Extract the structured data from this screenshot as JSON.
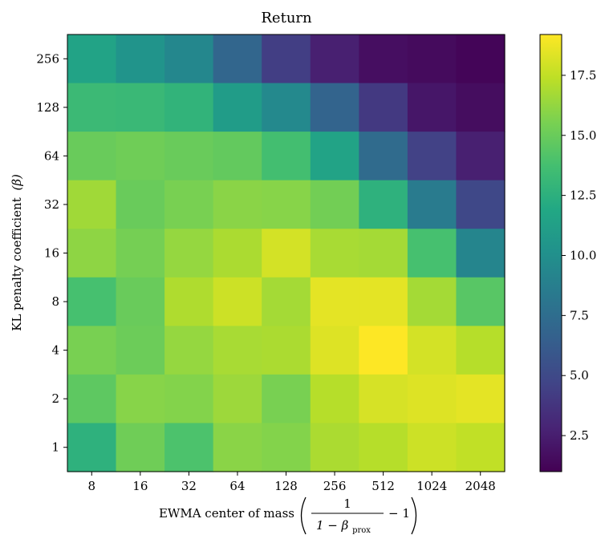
{
  "chart_data": {
    "type": "heatmap",
    "title": "Return",
    "xlabel": {
      "prefix": "EWMA center of mass",
      "fraction_numerator": "1",
      "fraction_denominator_lead": "1 − β",
      "fraction_denominator_sub": "prox",
      "suffix": "− 1"
    },
    "ylabel": {
      "text": "KL penalty coefficient",
      "symbol": "(β)"
    },
    "x_categories": [
      "8",
      "16",
      "32",
      "64",
      "128",
      "256",
      "512",
      "1024",
      "2048"
    ],
    "y_categories": [
      "256",
      "128",
      "64",
      "32",
      "16",
      "8",
      "4",
      "2",
      "1"
    ],
    "values": [
      [
        11.5,
        10.3,
        9.4,
        7.0,
        4.3,
        2.6,
        1.7,
        1.5,
        1.2
      ],
      [
        13.3,
        13.2,
        12.8,
        11.0,
        9.5,
        6.8,
        4.0,
        2.1,
        1.6
      ],
      [
        15.0,
        15.2,
        15.0,
        14.8,
        13.7,
        11.5,
        7.3,
        4.5,
        2.6
      ],
      [
        16.6,
        15.0,
        15.5,
        16.0,
        15.9,
        15.3,
        12.6,
        8.5,
        4.9
      ],
      [
        16.1,
        15.4,
        16.3,
        16.9,
        18.0,
        16.8,
        16.7,
        13.8,
        9.2
      ],
      [
        13.8,
        15.0,
        17.0,
        17.8,
        16.7,
        18.5,
        18.5,
        16.7,
        14.4
      ],
      [
        15.5,
        15.1,
        16.3,
        16.8,
        16.9,
        18.3,
        19.2,
        18.0,
        17.2
      ],
      [
        14.6,
        15.9,
        15.8,
        16.5,
        15.5,
        17.2,
        18.1,
        18.3,
        18.5
      ],
      [
        12.6,
        15.2,
        14.0,
        16.0,
        15.8,
        16.9,
        17.2,
        17.8,
        17.5
      ]
    ],
    "colorbar": {
      "min": 1.0,
      "max": 19.2,
      "ticks": [
        "2.5",
        "5.0",
        "7.5",
        "10.0",
        "12.5",
        "15.0",
        "17.5"
      ],
      "colormap": "viridis"
    },
    "grid": false,
    "legend": "none"
  }
}
